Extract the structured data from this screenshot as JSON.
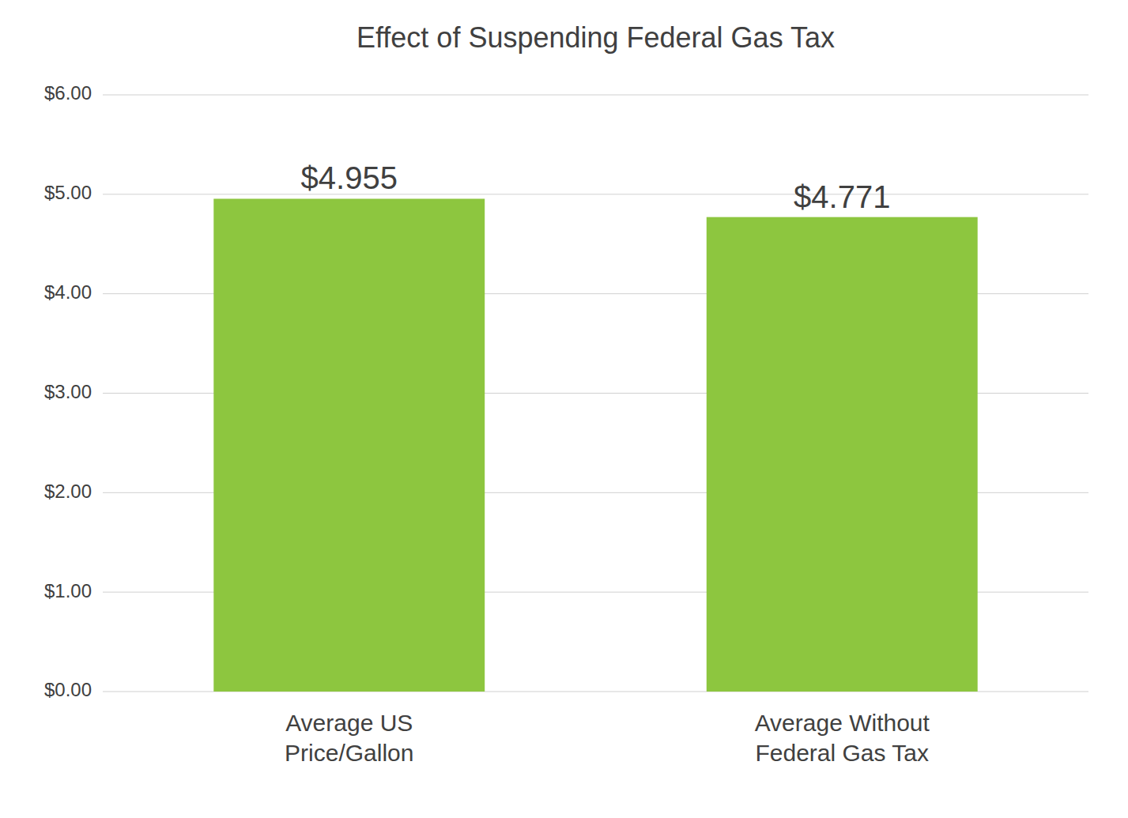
{
  "chart_data": {
    "type": "bar",
    "title": "Effect of Suspending Federal Gas Tax",
    "categories": [
      "Average US\nPrice/Gallon",
      "Average Without\nFederal Gas Tax"
    ],
    "values": [
      4.955,
      4.771
    ],
    "value_labels": [
      "$4.955",
      "$4.771"
    ],
    "data_labels": true,
    "color": "#8DC63F",
    "ylim": [
      0,
      6.0
    ],
    "yticks": [
      {
        "value": 0.0,
        "label": "$0.00"
      },
      {
        "value": 1.0,
        "label": "$1.00"
      },
      {
        "value": 2.0,
        "label": "$2.00"
      },
      {
        "value": 3.0,
        "label": "$3.00"
      },
      {
        "value": 4.0,
        "label": "$4.00"
      },
      {
        "value": 5.0,
        "label": "$5.00"
      },
      {
        "value": 6.0,
        "label": "$6.00"
      }
    ],
    "grid": true
  }
}
